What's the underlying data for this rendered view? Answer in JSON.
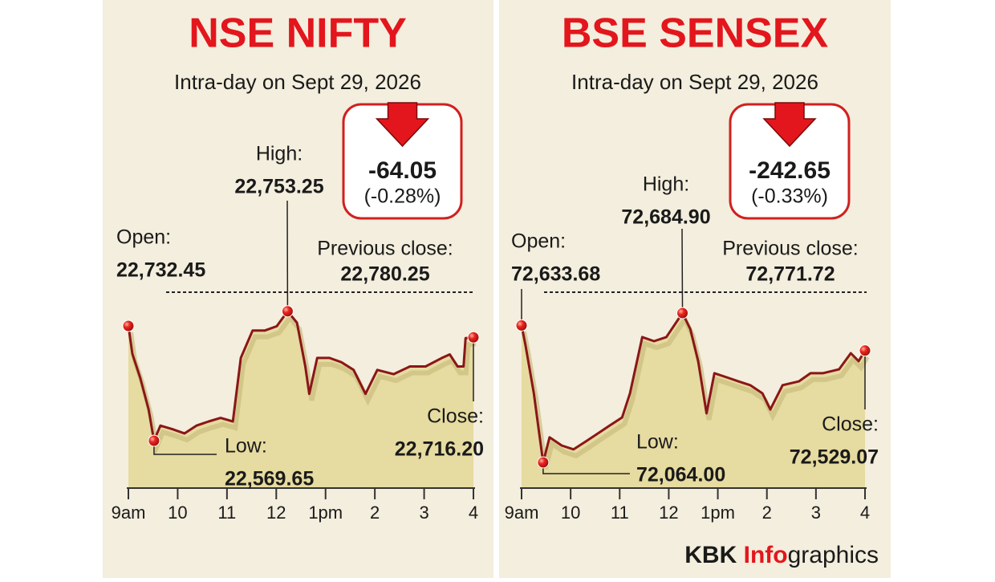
{
  "chart_data": [
    {
      "type": "line",
      "title": "NSE NIFTY",
      "subtitle": "Intra-day on Sept 29, 2026",
      "change": -64.05,
      "change_pct": -0.28,
      "change_pct_label": "(-0.28%)",
      "color": "#8a1618",
      "fill": "#e6dba0",
      "x": [
        9.0,
        9.08,
        9.24,
        9.41,
        9.52,
        9.65,
        9.89,
        10.14,
        10.38,
        10.63,
        10.87,
        11.12,
        11.28,
        11.52,
        11.77,
        12.01,
        12.23,
        12.42,
        12.59,
        12.67,
        12.83,
        13.08,
        13.32,
        13.57,
        13.81,
        14.05,
        14.38,
        14.71,
        15.03,
        15.36,
        15.52,
        15.68,
        15.8,
        15.84,
        16.0
      ],
      "values": [
        22732.45,
        22693,
        22659,
        22614,
        22569.65,
        22591,
        22586,
        22580,
        22591,
        22597,
        22602,
        22597,
        22687,
        22726,
        22726,
        22732,
        22753.25,
        22737,
        22675,
        22636,
        22687,
        22687,
        22681,
        22670,
        22636,
        22670,
        22664,
        22675,
        22675,
        22687,
        22692,
        22675,
        22675,
        22715,
        22716.2
      ],
      "xlim": [
        9,
        16
      ],
      "xticks": [
        {
          "value": 9,
          "label": "9am"
        },
        10,
        11,
        12,
        {
          "value": 13,
          "label": "1pm"
        },
        {
          "value": 14,
          "label": "2"
        },
        {
          "value": 15,
          "label": "3"
        },
        {
          "value": 16,
          "label": "4"
        }
      ],
      "previous_close": {
        "text": "Previous close:",
        "value": 22780.25,
        "value_label": "22,780.25"
      },
      "annotations": [
        {
          "text": "Open:",
          "x": 9.0,
          "value": 22732.45,
          "value_label": "22,732.45"
        },
        {
          "text": "High:",
          "x": 12.23,
          "value": 22753.25,
          "value_label": "22,753.25"
        },
        {
          "text": "Low:",
          "x": 9.52,
          "value": 22569.65,
          "value_label": "22,569.65"
        },
        {
          "text": "Close:",
          "x": 16.0,
          "value": 22716.2,
          "value_label": "22,716.20"
        }
      ]
    },
    {
      "type": "line",
      "title": "BSE SENSEX",
      "subtitle": "Intra-day on Sept 29, 2026",
      "change": -242.65,
      "change_pct": -0.33,
      "change_pct_label": "(-0.33%)",
      "color": "#8a1618",
      "fill": "#e6dba0",
      "x": [
        9.0,
        9.08,
        9.25,
        9.36,
        9.44,
        9.57,
        9.82,
        10.06,
        10.31,
        10.55,
        10.8,
        11.05,
        11.21,
        11.46,
        11.7,
        11.95,
        12.28,
        12.44,
        12.6,
        12.77,
        12.93,
        13.18,
        13.42,
        13.66,
        13.91,
        14.07,
        14.32,
        14.65,
        14.89,
        15.14,
        15.47,
        15.71,
        15.87,
        16.0
      ],
      "values": [
        72633.68,
        72551,
        72351,
        72184,
        72064.0,
        72168,
        72134,
        72118,
        72151,
        72184,
        72218,
        72251,
        72351,
        72585,
        72568,
        72585,
        72684.9,
        72618,
        72485,
        72268,
        72435,
        72418,
        72401,
        72385,
        72351,
        72284,
        72385,
        72401,
        72435,
        72435,
        72451,
        72518,
        72485,
        72529.07
      ],
      "xlim": [
        9,
        16
      ],
      "xticks": [
        {
          "value": 9,
          "label": "9am"
        },
        10,
        11,
        12,
        {
          "value": 13,
          "label": "1pm"
        },
        {
          "value": 14,
          "label": "2"
        },
        {
          "value": 15,
          "label": "3"
        },
        {
          "value": 16,
          "label": "4"
        }
      ],
      "previous_close": {
        "text": "Previous close:",
        "value": 72771.72,
        "value_label": "72,771.72"
      },
      "annotations": [
        {
          "text": "Open:",
          "x": 9.0,
          "value": 72633.68,
          "value_label": "72,633.68"
        },
        {
          "text": "High:",
          "x": 12.28,
          "value": 72684.9,
          "value_label": "72,684.90"
        },
        {
          "text": "Low:",
          "x": 9.44,
          "value": 72064.0,
          "value_label": "72,064.00"
        },
        {
          "text": "Close:",
          "x": 16.0,
          "value": 72529.07,
          "value_label": "72,529.07"
        }
      ]
    }
  ],
  "credit": [
    "KBK",
    "Info",
    "graphics"
  ]
}
